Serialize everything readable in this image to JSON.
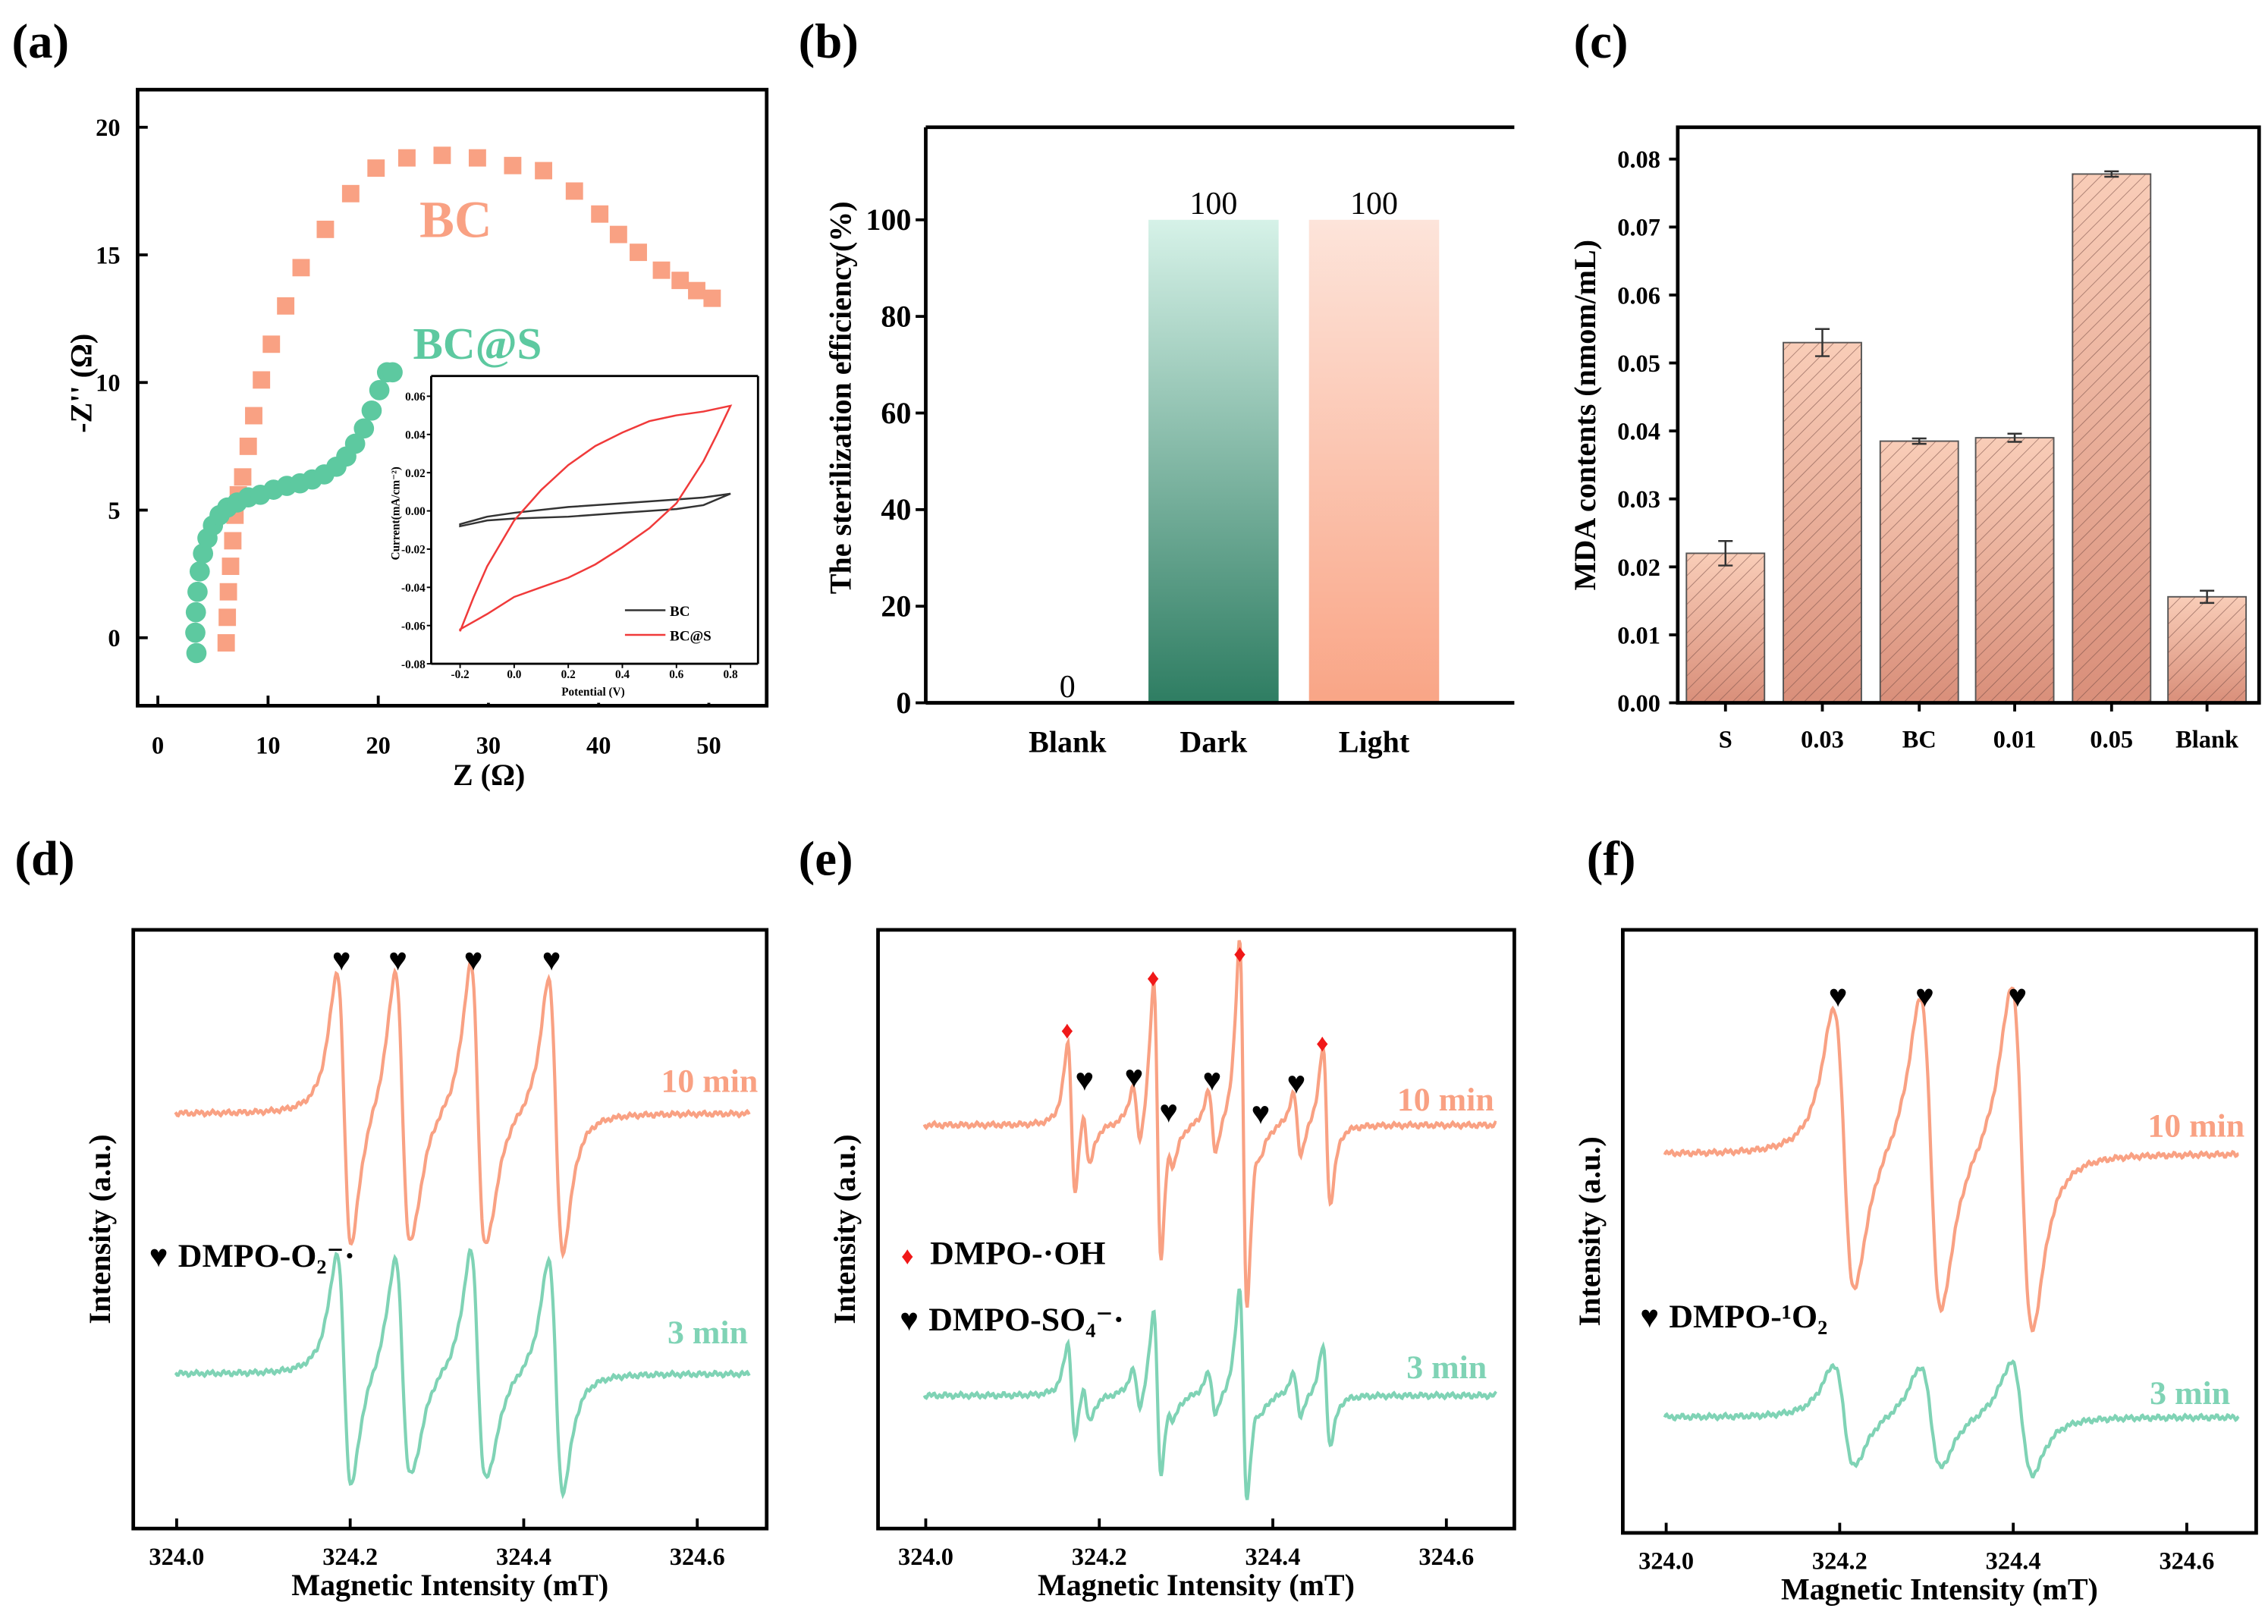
{
  "panels": {
    "a": "(a)",
    "b": "(b)",
    "c": "(c)",
    "d": "(d)",
    "e": "(e)",
    "f": "(f)"
  },
  "chart_data": [
    {
      "id": "a",
      "type": "scatter",
      "xlabel": "Z  (Ω)",
      "ylabel": "-Z''  (Ω)",
      "xlim": [
        0,
        52
      ],
      "ylim": [
        -2.6,
        20
      ],
      "xticks": [
        0,
        10,
        20,
        30,
        40,
        50
      ],
      "yticks": [
        0,
        5,
        10,
        15,
        20
      ],
      "series": [
        {
          "name": "BC",
          "color": "#F9A183",
          "marker": "square",
          "x": [
            6.2,
            6.3,
            6.4,
            6.6,
            6.8,
            7.0,
            7.3,
            7.7,
            8.2,
            8.7,
            9.4,
            10.3,
            11.6,
            13.0,
            15.2,
            17.5,
            19.8,
            22.6,
            25.8,
            29.0,
            32.2,
            35.0,
            37.8,
            40.1,
            41.8,
            43.6,
            45.7,
            47.4,
            48.9,
            50.3
          ],
          "y": [
            -0.2,
            0.8,
            1.8,
            2.8,
            3.8,
            4.8,
            5.6,
            6.3,
            7.5,
            8.7,
            10.1,
            11.5,
            13.0,
            14.5,
            16.0,
            17.4,
            18.4,
            18.8,
            18.9,
            18.8,
            18.5,
            18.3,
            17.5,
            16.6,
            15.8,
            15.1,
            14.4,
            14.0,
            13.6,
            13.3
          ]
        },
        {
          "name": "BC@S",
          "color": "#5DC9A0",
          "marker": "circle",
          "x": [
            3.5,
            3.4,
            3.45,
            3.6,
            3.8,
            4.1,
            4.5,
            5.0,
            5.6,
            6.3,
            7.2,
            8.2,
            9.3,
            10.5,
            11.7,
            12.9,
            14.0,
            15.1,
            16.2,
            17.1,
            17.9,
            18.7,
            19.4,
            20.1,
            20.8,
            21.3
          ],
          "y": [
            -0.6,
            0.2,
            1.0,
            1.8,
            2.6,
            3.3,
            3.9,
            4.4,
            4.8,
            5.1,
            5.3,
            5.5,
            5.6,
            5.8,
            5.95,
            6.05,
            6.2,
            6.4,
            6.7,
            7.1,
            7.6,
            8.2,
            8.9,
            9.7,
            10.4,
            10.4
          ]
        }
      ],
      "annotations": [
        "BC",
        "BC@S"
      ],
      "inset": {
        "type": "line",
        "xlabel": "Potential (V)",
        "ylabel": "Current(mA/cm⁻²)",
        "xlim": [
          -0.3,
          1.0
        ],
        "ylim": [
          -0.08,
          0.07
        ],
        "xticks": [
          "-0.2",
          "0.0",
          "0.2",
          "0.4",
          "0.6",
          "0.8"
        ],
        "yticks": [
          "-0.08",
          "-0.06",
          "-0.04",
          "-0.02",
          "0.00",
          "0.02",
          "0.04",
          "0.06"
        ],
        "legend": [
          "BC",
          "BC@S"
        ],
        "series": [
          {
            "name": "BC",
            "color": "#333333",
            "x": [
              -0.2,
              -0.1,
              0,
              0.2,
              0.4,
              0.6,
              0.7,
              0.8,
              0.7,
              0.6,
              0.4,
              0.2,
              0,
              -0.1,
              -0.2
            ],
            "y": [
              -0.007,
              -0.003,
              -0.001,
              0.002,
              0.004,
              0.006,
              0.007,
              0.009,
              0.003,
              0.001,
              -0.001,
              -0.003,
              -0.004,
              -0.005,
              -0.008
            ]
          },
          {
            "name": "BC@S",
            "color": "#F03A3A",
            "x": [
              -0.2,
              -0.15,
              -0.1,
              0,
              0.1,
              0.2,
              0.3,
              0.4,
              0.5,
              0.6,
              0.7,
              0.8,
              0.75,
              0.7,
              0.6,
              0.5,
              0.4,
              0.3,
              0.2,
              0.1,
              0,
              -0.1,
              -0.2
            ],
            "y": [
              -0.063,
              -0.045,
              -0.029,
              -0.005,
              0.011,
              0.024,
              0.034,
              0.041,
              0.047,
              0.05,
              0.052,
              0.055,
              0.04,
              0.026,
              0.004,
              -0.009,
              -0.019,
              -0.028,
              -0.035,
              -0.04,
              -0.045,
              -0.054,
              -0.062
            ]
          }
        ]
      }
    },
    {
      "id": "b",
      "type": "bar",
      "ylabel": "The sterilization efficiency(%)",
      "categories": [
        "Blank",
        "Dark",
        "Light"
      ],
      "values": [
        0,
        100,
        100
      ],
      "data_labels": [
        "0",
        "100",
        "100"
      ],
      "ylim": [
        0,
        119
      ],
      "yticks": [
        0,
        20,
        40,
        60,
        80,
        100
      ],
      "colors": {
        "Dark": [
          "#D6F2E8",
          "#2E7D62"
        ],
        "Light": [
          "#FDE4DA",
          "#F9A586"
        ]
      }
    },
    {
      "id": "c",
      "type": "bar",
      "ylabel": "MDA contents (nmom/mL)",
      "categories": [
        "S",
        "0.03",
        "BC",
        "0.01",
        "0.05",
        "Blank"
      ],
      "values": [
        0.022,
        0.053,
        0.0385,
        0.039,
        0.0778,
        0.0156
      ],
      "errors": [
        0.0018,
        0.002,
        0.0004,
        0.0006,
        0.0004,
        0.0009
      ],
      "ylim": [
        0,
        0.085
      ],
      "yticks": [
        "0.00",
        "0.01",
        "0.02",
        "0.03",
        "0.04",
        "0.05",
        "0.06",
        "0.07",
        "0.08"
      ],
      "colors": [
        "#F9CDB8",
        "#D98F7A"
      ]
    },
    {
      "id": "d",
      "type": "line",
      "xlabel": "Magnetic Intensity (mT)",
      "ylabel": "Intensity (a.u.)",
      "xlim": [
        323.95,
        324.66
      ],
      "xticks": [
        "324.0",
        "324.2",
        "324.4",
        "324.6"
      ],
      "legend": [
        {
          "marker": "♥",
          "color": "#000000",
          "label": "DMPO-O₂⁻·"
        }
      ],
      "marker_positions": [
        {
          "marker": "♥",
          "x": 324.19
        },
        {
          "marker": "♥",
          "x": 324.255
        },
        {
          "marker": "♥",
          "x": 324.342
        },
        {
          "marker": "♥",
          "x": 324.432
        }
      ],
      "width": 0.0145,
      "series": [
        {
          "name": "10 min",
          "color": "#F9A183",
          "lines": [
            [
              324.193,
              100
            ],
            [
              324.26,
              100
            ],
            [
              324.347,
              105
            ],
            [
              324.437,
              100
            ],
            [
              324.272,
              12
            ],
            [
              324.36,
              12
            ]
          ]
        },
        {
          "name": "3 min",
          "color": "#7FD3B5",
          "lines": [
            [
              324.193,
              85
            ],
            [
              324.26,
              80
            ],
            [
              324.347,
              85
            ],
            [
              324.437,
              85
            ],
            [
              324.272,
              12
            ],
            [
              324.36,
              12
            ]
          ]
        }
      ]
    },
    {
      "id": "e",
      "type": "line",
      "xlabel": "Magnetic Intensity (mT)",
      "ylabel": "Intensity (a.u.)",
      "xlim": [
        323.97,
        324.66
      ],
      "xticks": [
        "324.0",
        "324.2",
        "324.4",
        "324.6"
      ],
      "legend": [
        {
          "marker": "♦",
          "color": "#F01818",
          "label": "DMPO-·OH"
        },
        {
          "marker": "♥",
          "color": "#000000",
          "label": "DMPO-SO₄⁻·"
        }
      ],
      "marker_positions": [
        {
          "marker": "♦",
          "x": 324.163
        },
        {
          "marker": "♦",
          "x": 324.262
        },
        {
          "marker": "♦",
          "x": 324.362
        },
        {
          "marker": "♦",
          "x": 324.457
        },
        {
          "marker": "♥",
          "x": 324.183
        },
        {
          "marker": "♥",
          "x": 324.24
        },
        {
          "marker": "♥",
          "x": 324.28
        },
        {
          "marker": "♥",
          "x": 324.33
        },
        {
          "marker": "♥",
          "x": 324.386
        },
        {
          "marker": "♥",
          "x": 324.427
        }
      ],
      "width": 0.0075,
      "series": [
        {
          "name": "10 min",
          "color": "#F9A183",
          "lines": [
            [
              324.168,
              55
            ],
            [
              324.267,
              100
            ],
            [
              324.366,
              130
            ],
            [
              324.462,
              55
            ],
            [
              324.185,
              22
            ],
            [
              324.243,
              22
            ],
            [
              324.282,
              14
            ],
            [
              324.33,
              22
            ],
            [
              324.383,
              8
            ],
            [
              324.428,
              22
            ]
          ]
        },
        {
          "name": "3 min",
          "color": "#7FD3B5",
          "lines": [
            [
              324.168,
              35
            ],
            [
              324.267,
              60
            ],
            [
              324.366,
              75
            ],
            [
              324.462,
              35
            ],
            [
              324.185,
              15
            ],
            [
              324.243,
              15
            ],
            [
              324.282,
              9
            ],
            [
              324.33,
              15
            ],
            [
              324.383,
              6
            ],
            [
              324.428,
              15
            ]
          ]
        }
      ]
    },
    {
      "id": "f",
      "type": "line",
      "xlabel": "Magnetic Intensity (mT)",
      "ylabel": "Intensity (a.u.)",
      "xlim": [
        323.95,
        324.66
      ],
      "xticks": [
        "324.0",
        "324.2",
        "324.4",
        "324.6"
      ],
      "legend": [
        {
          "marker": "♥",
          "color": "#000000",
          "label": "DMPO-¹O₂"
        }
      ],
      "marker_positions": [
        {
          "marker": "♥",
          "x": 324.198
        },
        {
          "marker": "♥",
          "x": 324.298
        },
        {
          "marker": "♥",
          "x": 324.405
        }
      ],
      "width": 0.021,
      "series": [
        {
          "name": "10 min",
          "color": "#F9A183",
          "lines": [
            [
              324.205,
              100
            ],
            [
              324.305,
              112
            ],
            [
              324.41,
              122
            ]
          ]
        },
        {
          "name": "3 min",
          "color": "#7FD3B5",
          "lines": [
            [
              324.205,
              36
            ],
            [
              324.305,
              36
            ],
            [
              324.41,
              40
            ]
          ]
        }
      ]
    }
  ]
}
